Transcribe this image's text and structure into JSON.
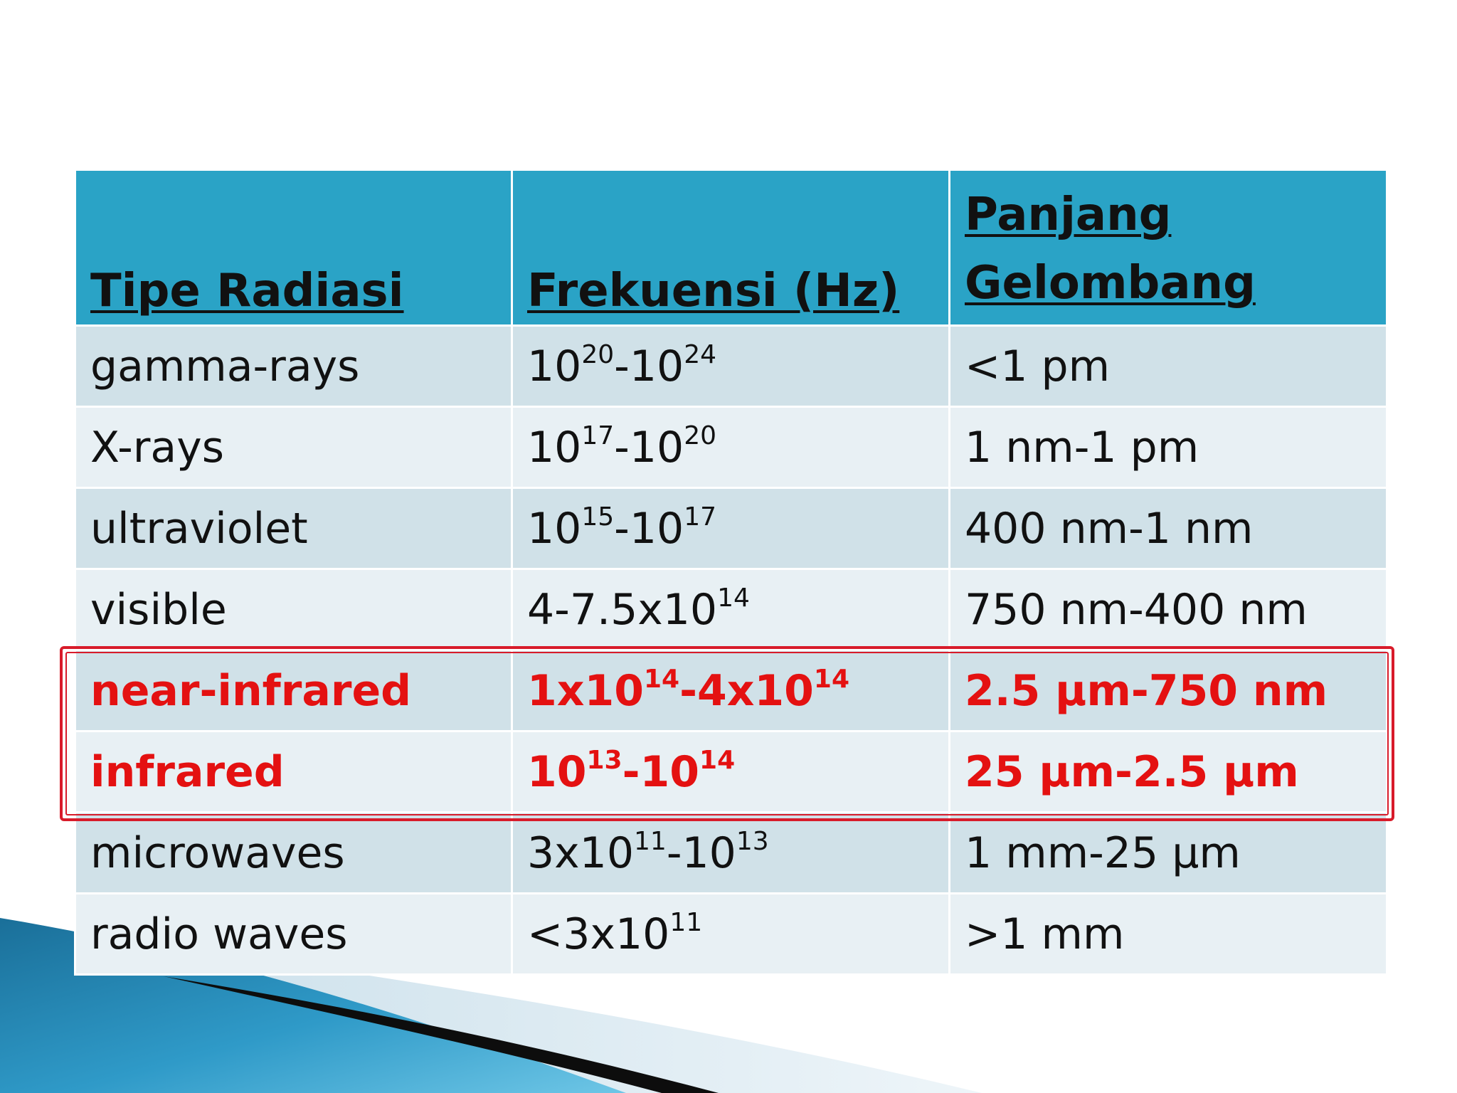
{
  "table": {
    "headers": [
      "Tipe Radiasi",
      "Frekuensi (Hz)",
      "Panjang Gelombang"
    ],
    "rows": [
      {
        "type": "gamma-rays",
        "freq": {
          "base1": "10",
          "exp1": "20",
          "sep": "-",
          "base2": "10",
          "exp2": "24"
        },
        "wavelength": "<1 pm",
        "highlight": false
      },
      {
        "type": "X-rays",
        "freq": {
          "base1": "10",
          "exp1": "17",
          "sep": "-",
          "base2": "10",
          "exp2": "20"
        },
        "wavelength": "1 nm-1 pm",
        "highlight": false
      },
      {
        "type": "ultraviolet",
        "freq": {
          "base1": "10",
          "exp1": "15",
          "sep": "-",
          "base2": "10",
          "exp2": "17"
        },
        "wavelength": "400 nm-1 nm",
        "highlight": false
      },
      {
        "type": "visible",
        "freq": {
          "base1": "4-7.5x10",
          "exp1": "14",
          "sep": "",
          "base2": "",
          "exp2": ""
        },
        "wavelength": "750 nm-400 nm",
        "highlight": false
      },
      {
        "type": "near-infrared",
        "freq": {
          "base1": "1x10",
          "exp1": "14",
          "sep": "-",
          "base2": "4x10",
          "exp2": "14"
        },
        "wavelength": "2.5 µm-750 nm",
        "highlight": true
      },
      {
        "type": "infrared",
        "freq": {
          "base1": "10",
          "exp1": "13",
          "sep": "-",
          "base2": "10",
          "exp2": "14"
        },
        "wavelength": "25 µm-2.5 µm",
        "highlight": true
      },
      {
        "type": "microwaves",
        "freq": {
          "base1": "3x10",
          "exp1": "11",
          "sep": "-",
          "base2": "10",
          "exp2": "13"
        },
        "wavelength": "1 mm-25 µm",
        "highlight": false
      },
      {
        "type": "radio waves",
        "freq": {
          "base1": "<3x10",
          "exp1": "11",
          "sep": "",
          "base2": "",
          "exp2": ""
        },
        "wavelength": ">1 mm",
        "highlight": false
      }
    ]
  },
  "colors": {
    "header_bg": "#2aa3c6",
    "row_dark": "#d0e1e8",
    "row_light": "#e8f0f4",
    "highlight_text": "#e41111",
    "highlight_frame": "#d81b2a"
  }
}
